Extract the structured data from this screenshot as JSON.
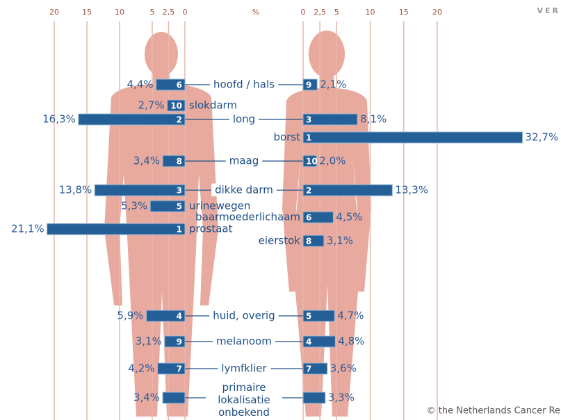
{
  "corner_text": "VER",
  "credit": "© the Netherlands Cancer Re",
  "chart_data": {
    "type": "butterfly",
    "xlabel": "%",
    "xlim": [
      0,
      20
    ],
    "xticks": [
      0,
      {
        "value": 2.5,
        "label": "2,5"
      },
      5,
      10,
      15,
      20
    ],
    "grid": true,
    "categories": [
      "hoofd / hals",
      "slokdarm",
      "long",
      "borst",
      "maag",
      "dikke darm",
      "urinewegen",
      "baarmoederlichaam",
      "prostaat",
      "eierstok",
      "huid, overig",
      "melanoom",
      "lymfklier",
      "primaire lokalisatie onbekend"
    ],
    "series": [
      {
        "color": "#245f98",
        "values": [
          4.4,
          2.7,
          16.3,
          null,
          3.4,
          13.8,
          5.3,
          null,
          21.1,
          null,
          5.9,
          3.1,
          4.2,
          3.4
        ],
        "value_labels": [
          "4,4%",
          "2,7%",
          "16,3%",
          null,
          "3,4%",
          "13,8%",
          "5,3%",
          null,
          "21,1%",
          null,
          "5,9%",
          "3,1%",
          "4,2%",
          "3,4%"
        ],
        "ranks": [
          6,
          10,
          2,
          null,
          8,
          3,
          5,
          null,
          1,
          null,
          4,
          9,
          7,
          null
        ]
      },
      {
        "color": "#245f98",
        "values": [
          2.1,
          null,
          8.1,
          32.7,
          2.0,
          13.3,
          null,
          4.5,
          null,
          3.1,
          4.7,
          4.8,
          3.6,
          3.3
        ],
        "value_labels": [
          "2,1%",
          null,
          "8,1%",
          "32,7%",
          "2,0%",
          "13,3%",
          null,
          "4,5%",
          null,
          "3,1%",
          "4,7%",
          "4,8%",
          "3,6%",
          "3,3%"
        ],
        "ranks": [
          9,
          null,
          3,
          1,
          10,
          2,
          null,
          6,
          null,
          8,
          5,
          4,
          7,
          null
        ]
      }
    ]
  }
}
